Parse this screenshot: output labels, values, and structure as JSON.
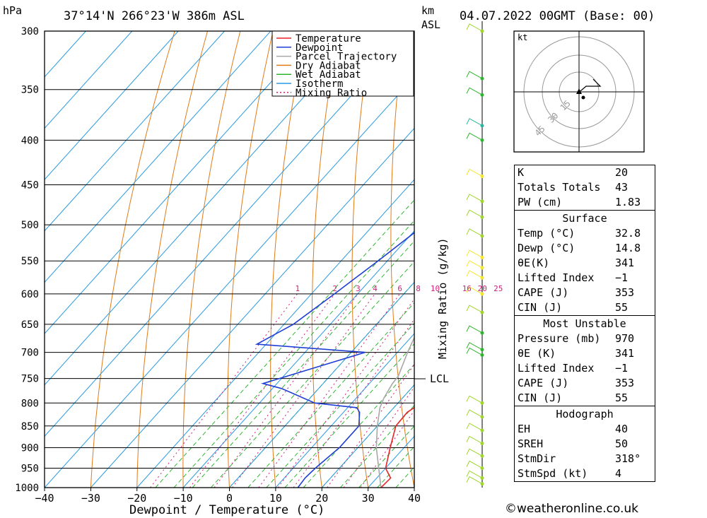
{
  "header": {
    "pressure_unit": "hPa",
    "location": "37°14'N  266°23'W  386m  ASL",
    "height_unit_line1": "km",
    "height_unit_line2": "ASL",
    "datetime": "04.07.2022  00GMT  (Base: 00)"
  },
  "chart_data": {
    "type": "skew-t",
    "xlabel": "Dewpoint / Temperature (°C)",
    "ylabel": "hPa",
    "xlim": [
      -40,
      40
    ],
    "ylim": [
      1000,
      300
    ],
    "x_ticks": [
      "−40",
      "−30",
      "−20",
      "−10",
      "0",
      "10",
      "20",
      "30",
      "40"
    ],
    "pressure_levels": [
      300,
      350,
      400,
      450,
      500,
      550,
      600,
      650,
      700,
      750,
      800,
      850,
      900,
      950,
      1000
    ],
    "legend": [
      "Temperature",
      "Dewpoint",
      "Parcel Trajectory",
      "Dry Adiabat",
      "Wet Adiabat",
      "Isotherm",
      "Mixing Ratio"
    ],
    "colors": {
      "temperature": "#e8232a",
      "dewpoint": "#1f3fd4",
      "parcel": "#a8a8a8",
      "dry_adiabat": "#e07b18",
      "wet_adiabat": "#2db52d",
      "isotherm": "#2a9ae0",
      "mixing_ratio": "#d0207a"
    },
    "mixing_ratio_labels": [
      "1",
      "2",
      "3",
      "4",
      "6",
      "8",
      "10",
      "16",
      "20",
      "25"
    ],
    "mixing_ratio_axis_label": "Mixing Ratio (g/kg)",
    "lcl_label": "LCL",
    "lcl_pressure": 745,
    "series": [
      {
        "name": "Temperature",
        "points": [
          [
            1000,
            32.8
          ],
          [
            975,
            33
          ],
          [
            950,
            30
          ],
          [
            900,
            27
          ],
          [
            850,
            24
          ],
          [
            820,
            23.8
          ],
          [
            800,
            25
          ],
          [
            770,
            24
          ],
          [
            750,
            23
          ],
          [
            700,
            21
          ],
          [
            685,
            24
          ],
          [
            650,
            21
          ],
          [
            600,
            17
          ],
          [
            550,
            11
          ],
          [
            500,
            4
          ],
          [
            450,
            -3
          ],
          [
            400,
            -11
          ],
          [
            370,
            -17
          ],
          [
            350,
            -21
          ],
          [
            330,
            -26
          ],
          [
            310,
            -30
          ],
          [
            300,
            -34
          ]
        ]
      },
      {
        "name": "Dewpoint",
        "points": [
          [
            1000,
            14.8
          ],
          [
            975,
            14.5
          ],
          [
            950,
            14.8
          ],
          [
            900,
            16
          ],
          [
            850,
            16
          ],
          [
            820,
            13.5
          ],
          [
            810,
            12
          ],
          [
            800,
            2
          ],
          [
            770,
            -8
          ],
          [
            760,
            -13
          ],
          [
            700,
            3
          ],
          [
            685,
            -22
          ],
          [
            650,
            -18
          ],
          [
            600,
            -15
          ],
          [
            550,
            -12
          ],
          [
            500,
            -9
          ],
          [
            450,
            -3
          ],
          [
            400,
            3
          ],
          [
            380,
            3
          ],
          [
            360,
            2
          ],
          [
            330,
            -2
          ],
          [
            310,
            -4
          ],
          [
            300,
            -4
          ]
        ]
      },
      {
        "name": "Parcel Trajectory",
        "points": [
          [
            1000,
            32.8
          ],
          [
            900,
            24
          ],
          [
            850,
            20
          ],
          [
            810,
            17
          ],
          [
            790,
            16
          ],
          [
            760,
            15
          ],
          [
            745,
            14.8
          ],
          [
            700,
            12.2
          ],
          [
            650,
            9.5
          ],
          [
            600,
            6
          ],
          [
            550,
            2
          ],
          [
            500,
            -3
          ],
          [
            450,
            -9
          ],
          [
            400,
            -16
          ],
          [
            350,
            -25
          ],
          [
            310,
            -34
          ],
          [
            300,
            -36
          ]
        ]
      }
    ]
  },
  "hodograph": {
    "unit_label": "kt",
    "ring_labels": [
      "15",
      "30",
      "45"
    ]
  },
  "stats": {
    "general": [
      [
        "K",
        "20"
      ],
      [
        "Totals Totals",
        "43"
      ],
      [
        "PW (cm)",
        "1.83"
      ]
    ],
    "surface_title": "Surface",
    "surface": [
      [
        "Temp (°C)",
        "32.8"
      ],
      [
        "Dewp (°C)",
        "14.8"
      ],
      [
        "θE(K)",
        "341"
      ],
      [
        "Lifted Index",
        "−1"
      ],
      [
        "CAPE (J)",
        "353"
      ],
      [
        "CIN (J)",
        "55"
      ]
    ],
    "most_unstable_title": "Most Unstable",
    "most_unstable": [
      [
        "Pressure (mb)",
        "970"
      ],
      [
        "θE (K)",
        "341"
      ],
      [
        "Lifted Index",
        "−1"
      ],
      [
        "CAPE (J)",
        "353"
      ],
      [
        "CIN (J)",
        "55"
      ]
    ],
    "hodograph_title": "Hodograph",
    "hodograph": [
      [
        "EH",
        "40"
      ],
      [
        "SREH",
        "50"
      ],
      [
        "StmDir",
        "318°"
      ],
      [
        "StmSpd (kt)",
        "4"
      ]
    ]
  },
  "credit": "©weatheronline.co.uk"
}
